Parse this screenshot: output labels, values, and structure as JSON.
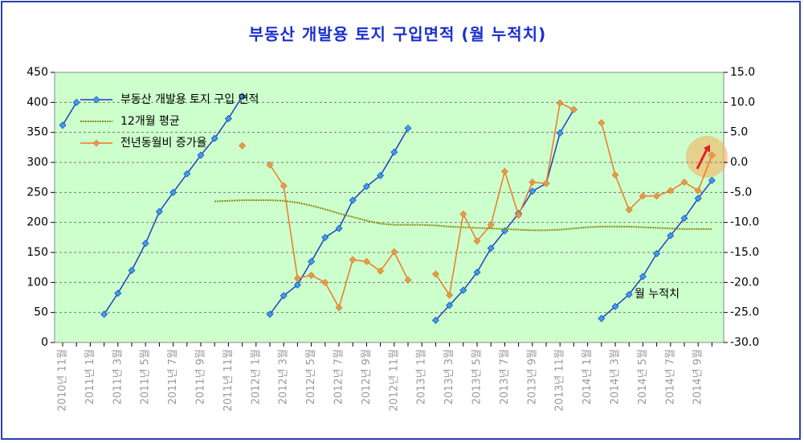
{
  "chart_data": {
    "type": "line",
    "title": "부동산 개발용 토지 구입면적 (월 누적치)",
    "annotation": "월 누적치",
    "categories": [
      "2010년 11월",
      null,
      "2011년 1월",
      null,
      "2011년 3월",
      null,
      "2011년 5월",
      null,
      "2011년 7월",
      null,
      "2011년 9월",
      null,
      "2011년 11월",
      null,
      "2012년 1월",
      null,
      "2012년 3월",
      null,
      "2012년 5월",
      null,
      "2012년 7월",
      null,
      "2012년 9월",
      null,
      "2012년 11월",
      null,
      "2013년 1월",
      null,
      "2013년 3월",
      null,
      "2013년 5월",
      null,
      "2013년 7월",
      null,
      "2013년 9월",
      null,
      "2013년 11월",
      null,
      "2014년 1월",
      null,
      "2014년 3월",
      null,
      "2014년 5월",
      null,
      "2014년 7월",
      null,
      "2014년 9월",
      null
    ],
    "ylim": [
      0,
      450
    ],
    "yticks": [
      0,
      50,
      100,
      150,
      200,
      250,
      300,
      350,
      400,
      450
    ],
    "y2lim": [
      -30,
      15
    ],
    "y2ticks": [
      {
        "value": -30,
        "label": "-30.0"
      },
      {
        "value": -25,
        "label": "-25.0"
      },
      {
        "value": -20,
        "label": "-20.0"
      },
      {
        "value": -15,
        "label": "-15.0"
      },
      {
        "value": -10,
        "label": "-10.0"
      },
      {
        "value": -5,
        "label": "-5.0"
      },
      {
        "value": 0,
        "label": "0.0"
      },
      {
        "value": 5,
        "label": "5.0"
      },
      {
        "value": 10,
        "label": "10.0"
      },
      {
        "value": 15,
        "label": "15.0"
      }
    ],
    "grid": true,
    "legend": "upper left",
    "series": [
      {
        "name": "부동산 개발용 토지 구입 면적",
        "color": "#1f3fbf",
        "marker": "#3aa0e8",
        "values": [
          362,
          400,
          null,
          47,
          82,
          120,
          165,
          218,
          250,
          281,
          312,
          340,
          373,
          410,
          null,
          47,
          78,
          96,
          135,
          175,
          190,
          237,
          260,
          278,
          317,
          357,
          null,
          37,
          62,
          87,
          117,
          157,
          186,
          215,
          252,
          265,
          349,
          388,
          null,
          40,
          60,
          80,
          110,
          148,
          178,
          207,
          240,
          270
        ]
      },
      {
        "name": "12개월 평균",
        "color": "#8a8a10",
        "dashed": true,
        "values": [
          null,
          null,
          null,
          null,
          null,
          null,
          null,
          null,
          null,
          null,
          null,
          235,
          236,
          237,
          237,
          237,
          236,
          233,
          228,
          222,
          215,
          209,
          203,
          198,
          196,
          196,
          196,
          195,
          193,
          192,
          191,
          190,
          189,
          188,
          187,
          187,
          188,
          190,
          192,
          193,
          193,
          193,
          192,
          191,
          190,
          189,
          189,
          189
        ]
      },
      {
        "name": "전년동월비 증가율",
        "color": "#f07820",
        "marker": "#d8a050",
        "axis": "y2",
        "values": [
          null,
          null,
          null,
          null,
          null,
          null,
          null,
          null,
          null,
          null,
          null,
          null,
          null,
          2.8,
          null,
          -0.4,
          -3.9,
          -19.3,
          -18.8,
          -20.0,
          -24.2,
          -16.2,
          -16.5,
          -18.1,
          -14.9,
          -19.6,
          null,
          -18.6,
          -22.1,
          -8.6,
          -13.1,
          -10.4,
          -1.5,
          -8.8,
          -3.3,
          -3.5,
          9.9,
          8.8,
          null,
          6.6,
          -2.1,
          -7.9,
          -5.6,
          -5.6,
          -4.7,
          -3.3,
          -4.7,
          1.2
        ]
      }
    ]
  }
}
